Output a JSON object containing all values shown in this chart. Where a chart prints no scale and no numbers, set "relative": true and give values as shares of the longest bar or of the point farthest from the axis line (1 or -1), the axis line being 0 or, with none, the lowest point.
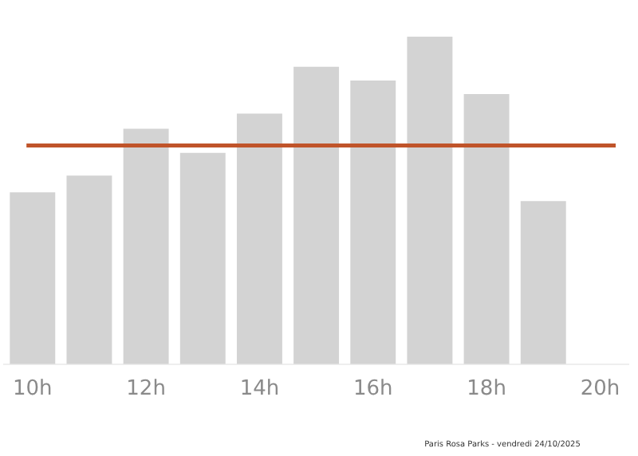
{
  "chart_data": {
    "type": "bar",
    "relative": true,
    "categories": [
      "10h",
      null,
      "12h",
      null,
      "14h",
      null,
      "16h",
      null,
      "18h",
      null,
      "20h"
    ],
    "values": [
      0.525,
      0.576,
      0.719,
      0.645,
      0.765,
      0.908,
      0.866,
      1,
      0.825,
      0.498,
      null
    ],
    "color": "#d3d3d3",
    "ref_lines": [
      {
        "axis": "y",
        "value": 0.668,
        "color": "#c0542a"
      }
    ],
    "annotations": [
      "Paris Rosa Parks - vendredi 24/10/2025"
    ],
    "grid": false,
    "legend": false
  }
}
